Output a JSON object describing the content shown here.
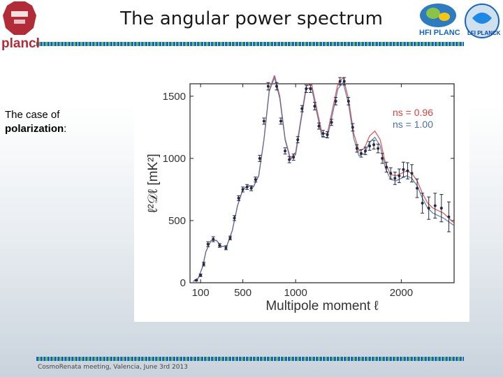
{
  "slide": {
    "title": "The angular power spectrum",
    "side_text": "The case of",
    "side_text_bold": "polarization",
    "side_text_colon": ":",
    "footer": "CosmoRenata meeting, Valencia, June 3rd 2013",
    "logos": {
      "left": "planck",
      "right1": "HFI PLANCK",
      "right2": "LFI PLANCK"
    },
    "colors": {
      "accent_blue": "#1565c0",
      "accent_green": "#66bb6a",
      "planck_red": "#b22c38",
      "curve": "#5f86a8",
      "point": "#222a40",
      "legend_red": "#d84040",
      "legend_blue": "#4a6fa0"
    }
  },
  "chart_data": {
    "type": "scatter",
    "title": "",
    "xlabel": "Multipole moment ℓ",
    "ylabel": "ℓ²𝒟ℓ [mK²]",
    "xlim": [
      0,
      2500
    ],
    "ylim": [
      0,
      1600
    ],
    "x_ticks": [
      100,
      500,
      1000,
      2000
    ],
    "x_tick_labels": [
      "100",
      "500",
      "1000",
      "2000"
    ],
    "y_ticks": [
      0,
      500,
      1000,
      1500
    ],
    "y_tick_labels": [
      "0",
      "500",
      "1000",
      "1500"
    ],
    "grid": false,
    "legend_position": "top-right",
    "series": [
      {
        "name": "ns = 0.96",
        "kind": "line",
        "color": "#d84040",
        "x": [
          30,
          80,
          120,
          150,
          200,
          250,
          300,
          350,
          400,
          450,
          500,
          550,
          600,
          650,
          700,
          750,
          800,
          850,
          900,
          950,
          1000,
          1050,
          1100,
          1150,
          1200,
          1250,
          1300,
          1350,
          1400,
          1450,
          1500,
          1550,
          1600,
          1650,
          1700,
          1750,
          1800,
          1850,
          1900,
          1950,
          2000,
          2050,
          2100,
          2150,
          2200,
          2250,
          2300,
          2350,
          2400,
          2450,
          2500
        ],
        "y": [
          10,
          40,
          130,
          250,
          340,
          340,
          290,
          300,
          420,
          620,
          750,
          780,
          770,
          860,
          1150,
          1550,
          1670,
          1500,
          1160,
          1000,
          1050,
          1320,
          1580,
          1600,
          1400,
          1200,
          1200,
          1400,
          1600,
          1650,
          1480,
          1200,
          1060,
          1080,
          1180,
          1220,
          1150,
          960,
          870,
          860,
          880,
          900,
          880,
          820,
          720,
          640,
          600,
          580,
          560,
          520,
          480
        ]
      },
      {
        "name": "ns = 1.00",
        "kind": "line",
        "color": "#4a6fa0",
        "x": [
          30,
          80,
          120,
          150,
          200,
          250,
          300,
          350,
          400,
          450,
          500,
          550,
          600,
          650,
          700,
          750,
          800,
          850,
          900,
          950,
          1000,
          1050,
          1100,
          1150,
          1200,
          1250,
          1300,
          1350,
          1400,
          1450,
          1500,
          1550,
          1600,
          1650,
          1700,
          1750,
          1800,
          1850,
          1900,
          1950,
          2000,
          2050,
          2100,
          2150,
          2200,
          2250,
          2300,
          2350,
          2400,
          2450,
          2500
        ],
        "y": [
          10,
          40,
          130,
          250,
          340,
          340,
          290,
          300,
          420,
          620,
          750,
          780,
          770,
          860,
          1150,
          1540,
          1650,
          1480,
          1150,
          990,
          1030,
          1300,
          1560,
          1570,
          1370,
          1170,
          1170,
          1360,
          1560,
          1610,
          1440,
          1160,
          1020,
          1040,
          1130,
          1170,
          1100,
          920,
          830,
          820,
          840,
          860,
          840,
          780,
          680,
          600,
          560,
          540,
          520,
          490,
          460
        ]
      },
      {
        "name": "data",
        "kind": "points",
        "color": "#222a40",
        "x": [
          60,
          100,
          130,
          170,
          220,
          280,
          340,
          380,
          420,
          460,
          500,
          540,
          580,
          620,
          660,
          700,
          740,
          780,
          820,
          860,
          900,
          940,
          980,
          1020,
          1060,
          1100,
          1140,
          1180,
          1220,
          1260,
          1300,
          1340,
          1380,
          1420,
          1460,
          1500,
          1540,
          1580,
          1620,
          1660,
          1700,
          1740,
          1780,
          1820,
          1860,
          1900,
          1940,
          1980,
          2020,
          2060,
          2100,
          2150,
          2200,
          2260,
          2320,
          2380,
          2450
        ],
        "y": [
          20,
          60,
          150,
          310,
          350,
          300,
          280,
          360,
          520,
          680,
          750,
          770,
          760,
          830,
          1000,
          1300,
          1580,
          1700,
          1580,
          1300,
          1060,
          990,
          1010,
          1150,
          1400,
          1560,
          1560,
          1420,
          1260,
          1200,
          1190,
          1290,
          1460,
          1620,
          1620,
          1460,
          1250,
          1080,
          1040,
          1060,
          1100,
          1110,
          1080,
          1000,
          930,
          880,
          840,
          860,
          910,
          900,
          880,
          760,
          640,
          600,
          620,
          600,
          530
        ],
        "err": [
          5,
          10,
          15,
          20,
          20,
          15,
          15,
          15,
          20,
          20,
          20,
          20,
          20,
          20,
          25,
          25,
          30,
          30,
          30,
          25,
          25,
          25,
          25,
          25,
          25,
          30,
          30,
          30,
          25,
          25,
          25,
          25,
          30,
          30,
          30,
          30,
          30,
          30,
          30,
          30,
          35,
          35,
          35,
          40,
          40,
          45,
          50,
          55,
          60,
          65,
          70,
          75,
          80,
          90,
          100,
          110,
          120
        ]
      }
    ],
    "legend": [
      {
        "label": "ns = 0.96",
        "color": "#d84040"
      },
      {
        "label": "ns = 1.00",
        "color": "#4a6fa0"
      }
    ]
  }
}
